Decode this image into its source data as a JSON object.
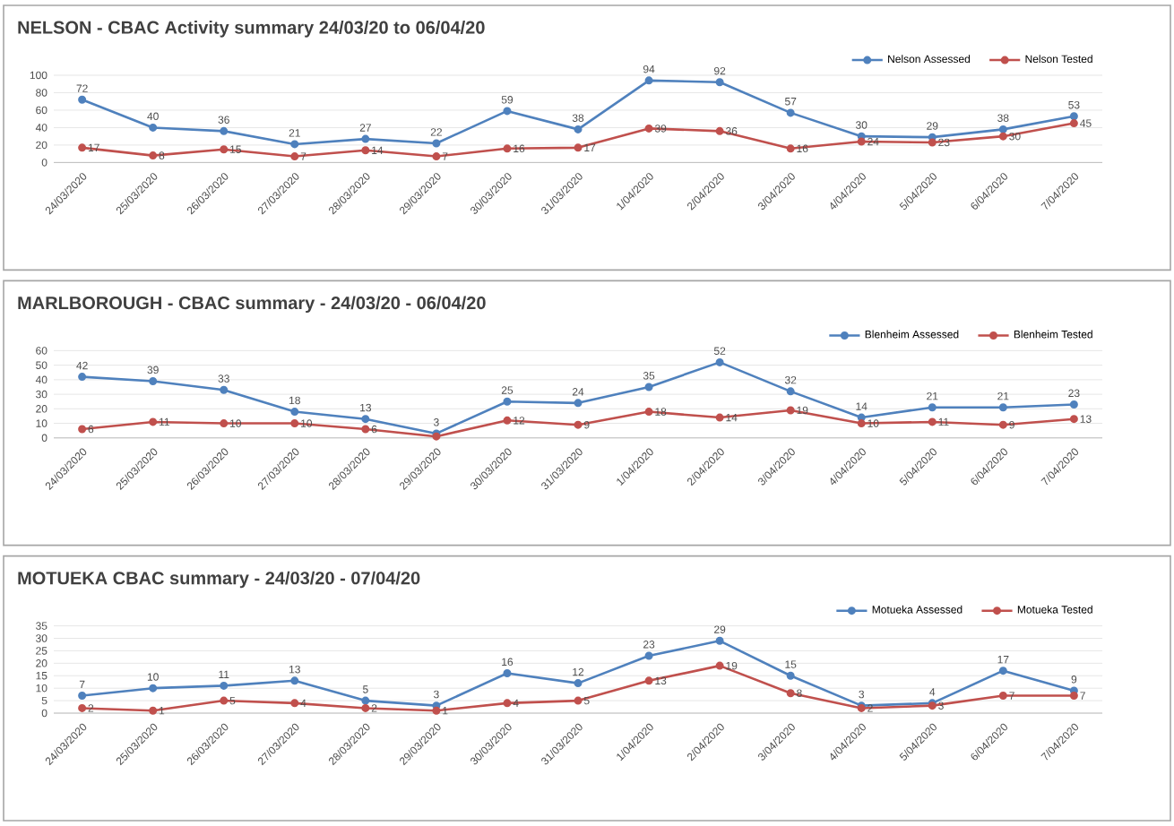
{
  "chart_data": [
    {
      "type": "line",
      "title": "NELSON - CBAC Activity summary 24/03/20 to 06/04/20",
      "categories": [
        "24/03/2020",
        "25/03/2020",
        "26/03/2020",
        "27/03/2020",
        "28/03/2020",
        "29/03/2020",
        "30/03/2020",
        "31/03/2020",
        "1/04/2020",
        "2/04/2020",
        "3/04/2020",
        "4/04/2020",
        "5/04/2020",
        "6/04/2020",
        "7/04/2020"
      ],
      "series": [
        {
          "name": "Nelson Assessed",
          "color": "#4f81bd",
          "values": [
            72,
            40,
            36,
            21,
            27,
            22,
            59,
            38,
            94,
            92,
            57,
            30,
            29,
            38,
            53
          ]
        },
        {
          "name": "Nelson Tested",
          "color": "#c0504d",
          "values": [
            17,
            8,
            15,
            7,
            14,
            7,
            16,
            17,
            39,
            36,
            16,
            24,
            23,
            30,
            45
          ]
        }
      ],
      "ylim": [
        0,
        100
      ],
      "yticks": [
        0,
        20,
        40,
        60,
        80,
        100
      ],
      "grid": "y",
      "legend": "top right",
      "marker": "circle",
      "data_labels": true
    },
    {
      "type": "line",
      "title": "MARLBOROUGH - CBAC summary - 24/03/20 - 06/04/20",
      "categories": [
        "24/03/2020",
        "25/03/2020",
        "26/03/2020",
        "27/03/2020",
        "28/03/2020",
        "29/03/2020",
        "30/03/2020",
        "31/03/2020",
        "1/04/2020",
        "2/04/2020",
        "3/04/2020",
        "4/04/2020",
        "5/04/2020",
        "6/04/2020",
        "7/04/2020"
      ],
      "series": [
        {
          "name": "Blenheim Assessed",
          "color": "#4f81bd",
          "values": [
            42,
            39,
            33,
            18,
            13,
            3,
            25,
            24,
            35,
            52,
            32,
            14,
            21,
            21,
            23
          ],
          "value_labels": [
            "42",
            "39",
            "33",
            "18",
            "13",
            "3",
            "25",
            "24",
            "35",
            "52",
            "32",
            "14",
            "21",
            "21",
            "23"
          ]
        },
        {
          "name": "Blenheim Tested",
          "color": "#c0504d",
          "values": [
            6,
            11,
            10,
            10,
            6,
            1,
            12,
            9,
            18,
            14,
            19,
            10,
            11,
            9,
            13
          ],
          "value_labels": [
            "6",
            "11",
            "10",
            "10",
            "6",
            null,
            "12",
            "9",
            "18",
            "14",
            "19",
            "10",
            "11",
            "9",
            "13"
          ]
        }
      ],
      "ylim": [
        0,
        60
      ],
      "yticks": [
        0,
        10,
        20,
        30,
        40,
        50,
        60
      ],
      "grid": "y",
      "legend": "top right",
      "marker": "circle"
    },
    {
      "type": "line",
      "title": "MOTUEKA CBAC summary - 24/03/20 - 07/04/20",
      "categories": [
        "24/03/2020",
        "25/03/2020",
        "26/03/2020",
        "27/03/2020",
        "28/03/2020",
        "29/03/2020",
        "30/03/2020",
        "31/03/2020",
        "1/04/2020",
        "2/04/2020",
        "3/04/2020",
        "4/04/2020",
        "5/04/2020",
        "6/04/2020",
        "7/04/2020"
      ],
      "series": [
        {
          "name": "Motueka Assessed",
          "color": "#4f81bd",
          "values": [
            7,
            10,
            11,
            13,
            5,
            3,
            16,
            12,
            23,
            29,
            15,
            3,
            4,
            17,
            9
          ]
        },
        {
          "name": "Motueka Tested",
          "color": "#c0504d",
          "values": [
            2,
            1,
            5,
            4,
            2,
            1,
            4,
            5,
            13,
            19,
            8,
            2,
            3,
            7,
            7
          ]
        }
      ],
      "ylim": [
        0,
        35
      ],
      "yticks": [
        0,
        5,
        10,
        15,
        20,
        25,
        30,
        35
      ],
      "grid": "y",
      "legend": "top right",
      "marker": "circle",
      "data_labels": true
    }
  ]
}
